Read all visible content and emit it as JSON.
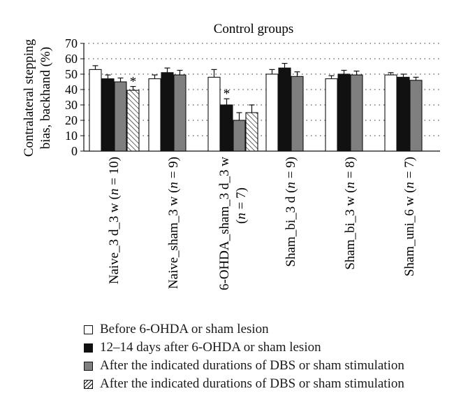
{
  "chart_data": {
    "type": "bar",
    "title": "Control groups",
    "ylabel_line1": "Contralateral stepping",
    "ylabel_line2": "bias, backhand (%)",
    "ylim": [
      0,
      70
    ],
    "yticks": [
      "0",
      "10",
      "20",
      "30",
      "40",
      "50",
      "60",
      "70"
    ],
    "grid": "horizontal-dotted",
    "categories": [
      {
        "line1_prefix": "Naive_3 d_3 w (",
        "n": "n",
        "line1_suffix": " = 10)",
        "line2": ""
      },
      {
        "line1_prefix": "Naive_sham_3 w (",
        "n": "n",
        "line1_suffix": " = 9)",
        "line2": ""
      },
      {
        "line1_prefix": "6-OHDA_sham_3 d_3 w",
        "n": "",
        "line1_suffix": "",
        "line2_prefix": "(",
        "line2_n": "n",
        "line2_suffix": " = 7)"
      },
      {
        "line1_prefix": "Sham_bi_3 d (",
        "n": "n",
        "line1_suffix": " = 9)",
        "line2": ""
      },
      {
        "line1_prefix": "Sham_bi_3 w (",
        "n": "n",
        "line1_suffix": " = 8)",
        "line2": ""
      },
      {
        "line1_prefix": "Sham_uni_6 w (",
        "n": "n",
        "line1_suffix": " = 7)",
        "line2": ""
      }
    ],
    "series": [
      {
        "name": "Before 6-OHDA or sham lesion",
        "fill": "#ffffff",
        "pattern": "none",
        "values": [
          53,
          47,
          48,
          50,
          47,
          49.5
        ],
        "errors": [
          2.5,
          2.5,
          5,
          3,
          2,
          1.5
        ]
      },
      {
        "name": "12–14 days after 6-OHDA or sham lesion",
        "fill": "#111111",
        "pattern": "none",
        "values": [
          47,
          51,
          30,
          54,
          50,
          48
        ],
        "errors": [
          2.5,
          3,
          4,
          3,
          2.5,
          2
        ]
      },
      {
        "name": "After the indicated durations of DBS or sham stimulation",
        "fill": "#7f7f7f",
        "pattern": "none",
        "values": [
          45,
          49.5,
          20,
          48.5,
          49.5,
          46
        ],
        "errors": [
          2.5,
          3,
          5,
          3,
          2.5,
          2
        ]
      },
      {
        "name": "After the indicated durations of DBS or sham stimulation",
        "fill": "#ffffff",
        "pattern": "hatch",
        "values": [
          39.5,
          null,
          25,
          null,
          null,
          null
        ],
        "errors": [
          2.5,
          null,
          5,
          null,
          null,
          null
        ]
      }
    ],
    "significance": [
      {
        "category": 0,
        "series": 3,
        "label": "*"
      },
      {
        "category": 2,
        "series": 1,
        "label": "*"
      }
    ],
    "legend_position": "bottom"
  }
}
